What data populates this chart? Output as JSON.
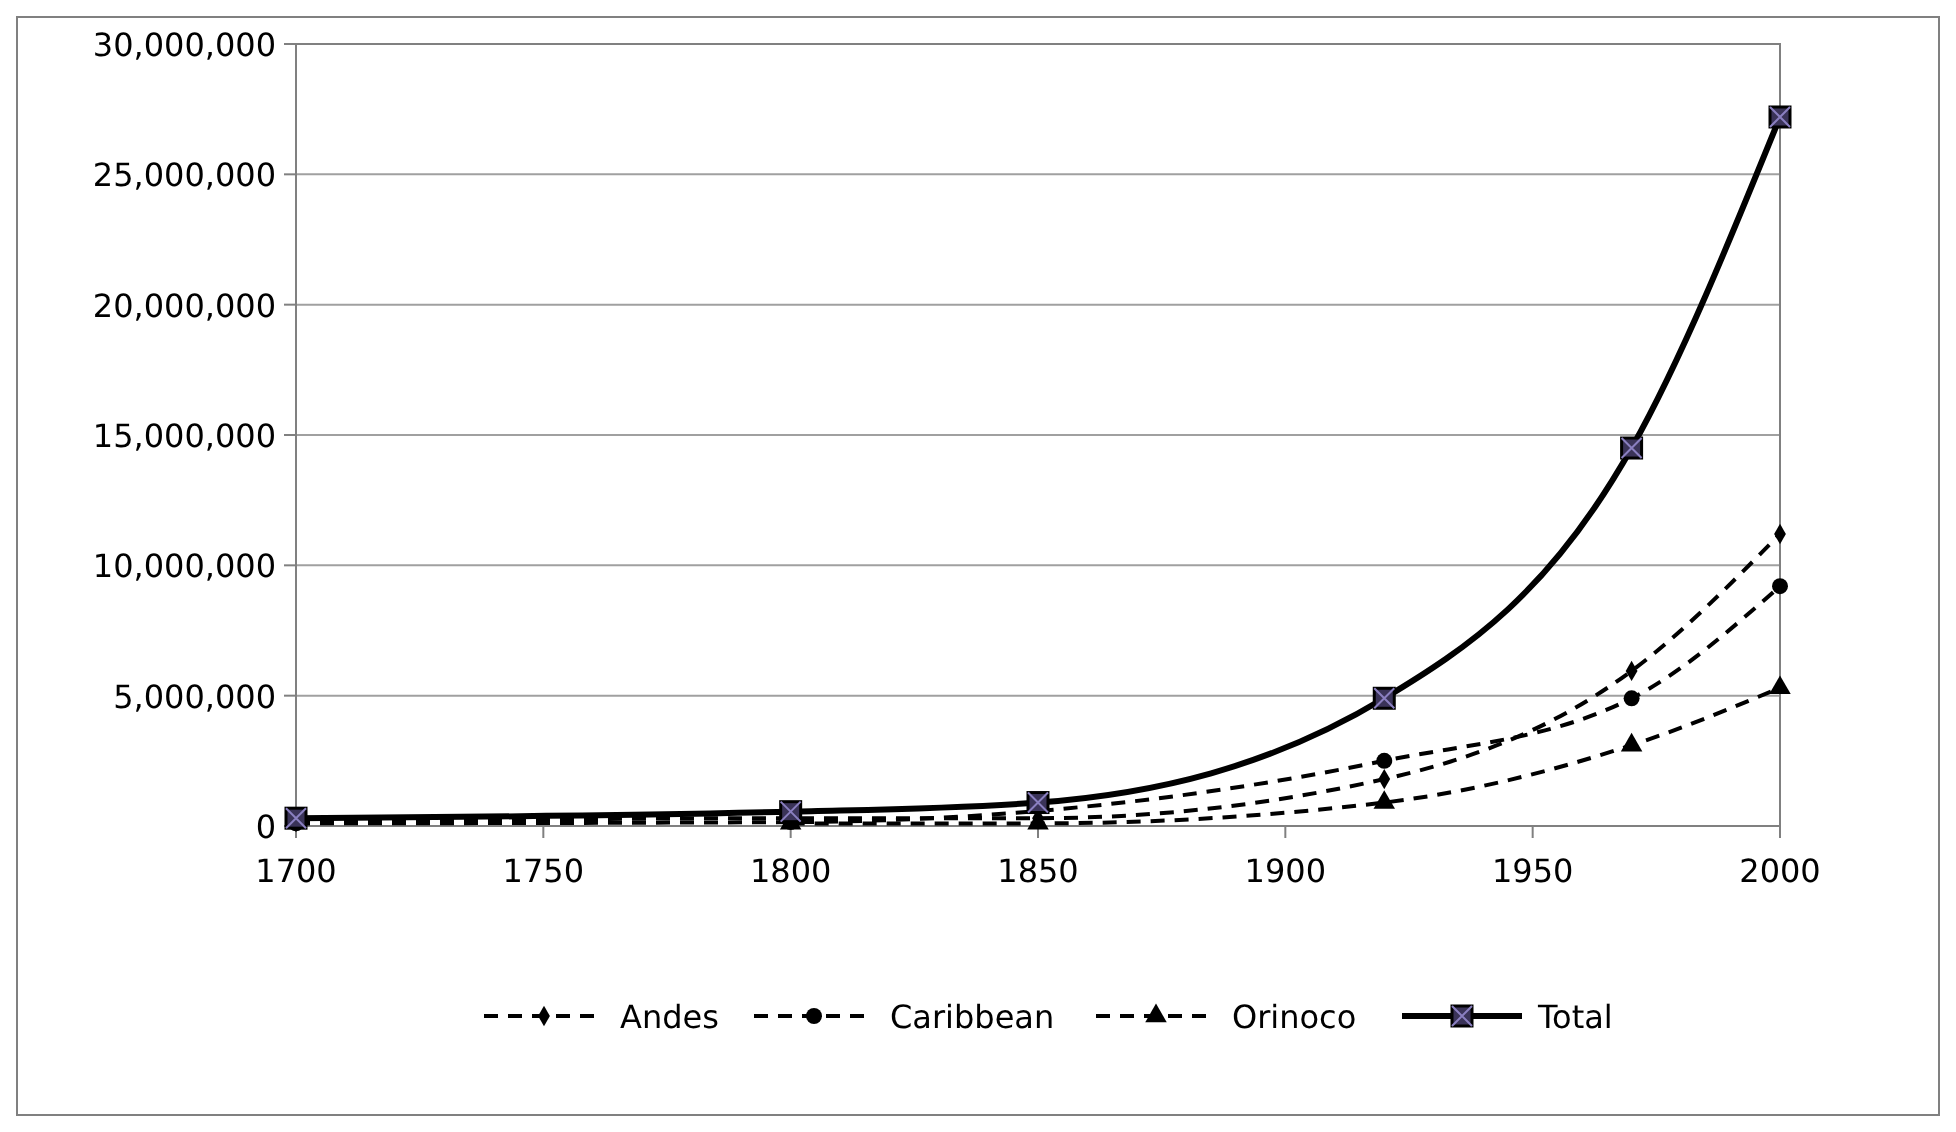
{
  "chart_data": {
    "type": "line",
    "x": [
      1700,
      1800,
      1850,
      1920,
      1970,
      2000
    ],
    "xlim": [
      1700,
      2000
    ],
    "xticks": [
      1700,
      1750,
      1800,
      1850,
      1900,
      1950,
      2000
    ],
    "ylim": [
      0,
      30000000
    ],
    "yticks": [
      {
        "value": 0,
        "label": "0"
      },
      {
        "value": 5000000,
        "label": "5,000,000"
      },
      {
        "value": 10000000,
        "label": "10,000,000"
      },
      {
        "value": 15000000,
        "label": "15,000,000"
      },
      {
        "value": 20000000,
        "label": "20,000,000"
      },
      {
        "value": 25000000,
        "label": "25,000,000"
      },
      {
        "value": 30000000,
        "label": "30,000,000"
      }
    ],
    "grid": "y",
    "legend": "bottom",
    "series": [
      {
        "name": "Andes",
        "color": "#000000",
        "marker": "diamond",
        "line_style": "dashed",
        "values": [
          150000,
          300000,
          300000,
          1800000,
          5950000,
          11200000
        ]
      },
      {
        "name": "Caribbean",
        "color": "#000000",
        "marker": "circle",
        "line_style": "dashed",
        "values": [
          100000,
          150000,
          null,
          2500000,
          4900000,
          9200000
        ]
      },
      {
        "name": "Orinoco",
        "color": "#000000",
        "marker": "triangle",
        "line_style": "dashed",
        "values": [
          null,
          100000,
          100000,
          900000,
          3100000,
          5300000
        ]
      },
      {
        "name": "Total",
        "color": "#000000",
        "marker": "square",
        "line_style": "solid",
        "values": [
          300000,
          550000,
          900000,
          4900000,
          14500000,
          27200000
        ]
      }
    ]
  }
}
